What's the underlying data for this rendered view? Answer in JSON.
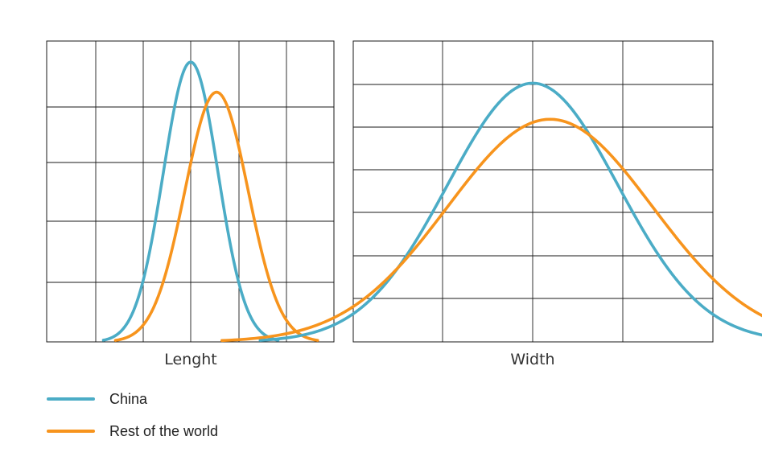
{
  "chart_data": [
    {
      "type": "line",
      "xlabel": "Lenght",
      "x_range": [
        -1,
        1
      ],
      "y_range": [
        0,
        1
      ],
      "grid": true,
      "series": [
        {
          "name": "China",
          "color": "#4bacc6",
          "mean": 0.0,
          "sd": 0.095,
          "peak": 0.93
        },
        {
          "name": "Rest of the world",
          "color": "#f7941d",
          "mean": 0.09,
          "sd": 0.11,
          "peak": 0.83
        }
      ]
    },
    {
      "type": "line",
      "xlabel": "Width",
      "x_range": [
        -1,
        1
      ],
      "y_range": [
        0,
        1
      ],
      "grid": true,
      "series": [
        {
          "name": "China",
          "color": "#4bacc6",
          "mean": 0.0,
          "sd": 0.245,
          "peak": 0.86
        },
        {
          "name": "Rest of the world",
          "color": "#f7941d",
          "mean": 0.05,
          "sd": 0.295,
          "peak": 0.74
        }
      ]
    }
  ],
  "legend": {
    "items": [
      {
        "label": "China",
        "color": "#4bacc6"
      },
      {
        "label": "Rest of the world",
        "color": "#f7941d"
      }
    ]
  }
}
